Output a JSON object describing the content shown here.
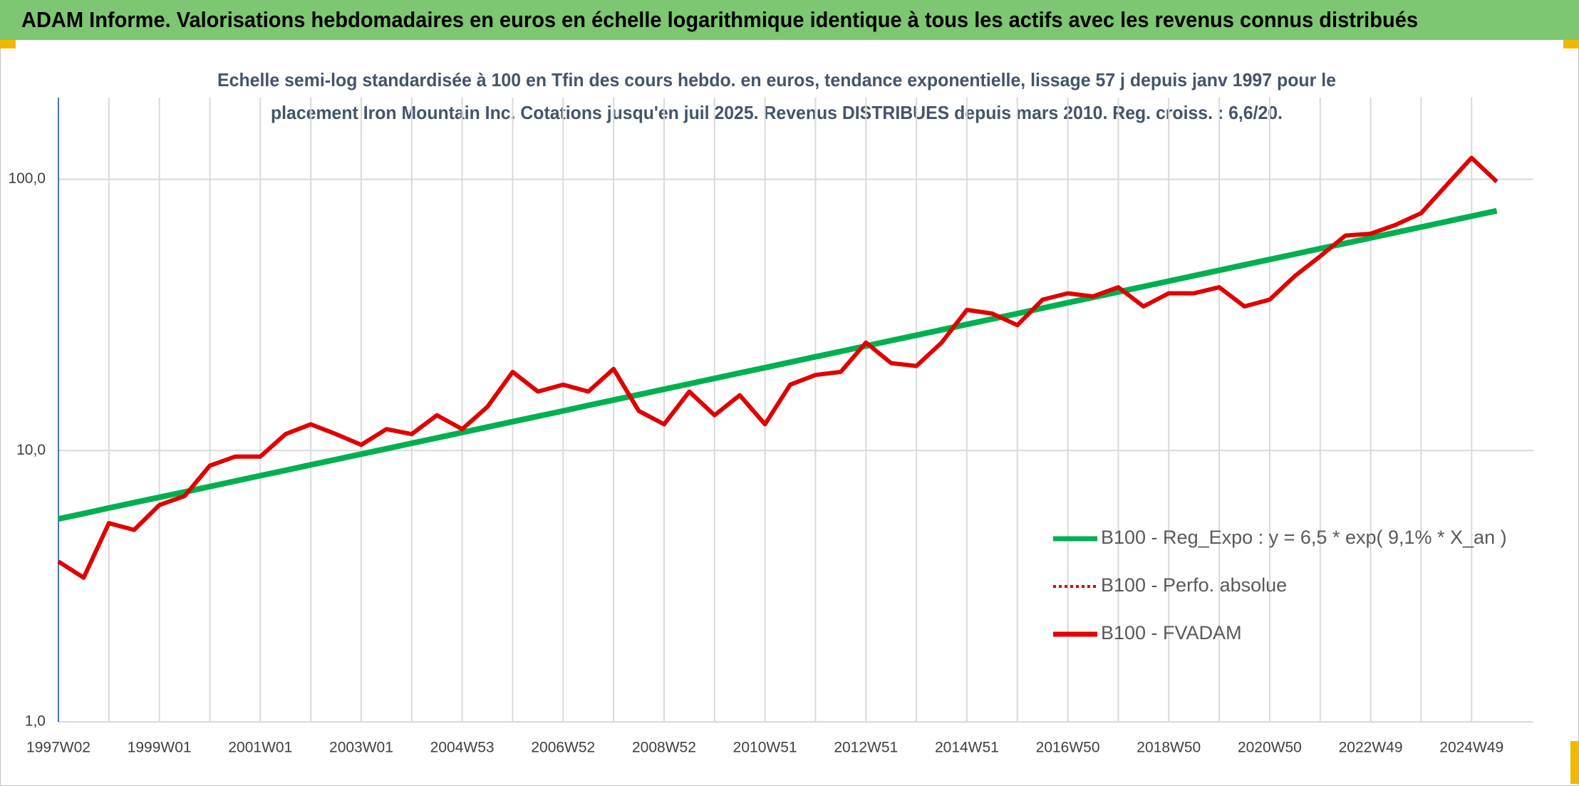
{
  "chart_data": {
    "type": "line",
    "title": "ADAM Informe. Valorisations hebdomadaires en euros en échelle logarithmique identique à tous les actifs avec les revenus connus distribués",
    "subtitle": [
      "Echelle semi-log standardisée à 100 en Tfin des cours hebdo. en euros, tendance exponentielle, lissage 57 j depuis janv 1997 pour le",
      "placement Iron Mountain Inc. Cotations jusqu'en juil 2025. Revenus DISTRIBUES depuis mars 2010. Reg. croiss. : 6,6/20."
    ],
    "log_scale": true,
    "grid": true,
    "categories": [
      "1997W02",
      null,
      null,
      null,
      "1999W01",
      null,
      null,
      null,
      "2001W01",
      null,
      null,
      null,
      "2003W01",
      null,
      null,
      null,
      "2004W53",
      null,
      null,
      null,
      "2006W52",
      null,
      null,
      null,
      "2008W52",
      null,
      null,
      null,
      "2010W51",
      null,
      null,
      null,
      "2012W51",
      null,
      null,
      null,
      "2014W51",
      null,
      null,
      null,
      "2016W50",
      null,
      null,
      null,
      "2018W50",
      null,
      null,
      null,
      "2020W50",
      null,
      null,
      null,
      "2022W49",
      null,
      null,
      null,
      "2024W49",
      null
    ],
    "ylim": [
      1,
      200
    ],
    "yticks": [
      {
        "value": 1,
        "label": "1,0"
      },
      {
        "value": 10,
        "label": "10,0"
      },
      {
        "value": 100,
        "label": "100,0"
      }
    ],
    "series": [
      {
        "name": "B100 - Reg_Expo : y = 6,5 * exp( 9,1% *  X_an )",
        "color": "#00b050",
        "dash": "solid",
        "values": [
          5.6,
          5.86,
          6.14,
          6.43,
          6.73,
          7.04,
          7.37,
          7.72,
          8.08,
          8.46,
          8.86,
          9.27,
          9.71,
          10.16,
          10.64,
          11.14,
          11.66,
          12.21,
          12.78,
          13.38,
          14.01,
          14.67,
          15.36,
          16.08,
          16.83,
          17.62,
          18.45,
          19.32,
          20.22,
          21.17,
          22.17,
          23.21,
          24.3,
          25.44,
          26.63,
          27.88,
          29.19,
          30.56,
          32.0,
          33.5,
          35.07,
          36.72,
          38.44,
          40.25,
          42.14,
          44.12,
          46.19,
          48.36,
          50.63,
          53.01,
          55.5,
          58.11,
          60.84,
          63.69,
          66.69,
          69.82,
          73.1,
          76.53
        ]
      },
      {
        "name": "B100 - Perfo. absolue",
        "color": "#e00000",
        "dash": "dotted",
        "values": [
          3.9,
          3.4,
          5.4,
          5.1,
          6.3,
          6.8,
          8.8,
          9.5,
          9.5,
          11.5,
          12.5,
          11.5,
          10.5,
          12.0,
          11.5,
          13.5,
          12.0,
          14.5,
          19.5,
          16.5,
          17.5,
          16.5,
          20.0,
          14.0,
          12.5,
          16.5,
          13.5,
          16.0,
          12.5,
          17.5,
          19.0,
          19.5,
          25.0,
          21.0,
          20.5,
          25.0,
          33.0,
          32.0,
          29.0,
          36.0,
          38.0,
          37.0,
          40.0,
          34.0,
          38.0,
          38.0,
          40.0,
          34.0,
          36.0,
          44.0,
          52.0,
          62.0,
          63.0,
          68.0,
          75.0,
          95.0,
          120.0,
          98.0
        ]
      },
      {
        "name": "B100 - FVADAM",
        "color": "#e00000",
        "dash": "solid",
        "values": [
          3.9,
          3.4,
          5.4,
          5.1,
          6.3,
          6.8,
          8.8,
          9.5,
          9.5,
          11.5,
          12.5,
          11.5,
          10.5,
          12.0,
          11.5,
          13.5,
          12.0,
          14.5,
          19.5,
          16.5,
          17.5,
          16.5,
          20.0,
          14.0,
          12.5,
          16.5,
          13.5,
          16.0,
          12.5,
          17.5,
          19.0,
          19.5,
          25.0,
          21.0,
          20.5,
          25.0,
          33.0,
          32.0,
          29.0,
          36.0,
          38.0,
          37.0,
          40.0,
          34.0,
          38.0,
          38.0,
          40.0,
          34.0,
          36.0,
          44.0,
          52.0,
          62.0,
          63.0,
          68.0,
          75.0,
          95.0,
          120.0,
          98.0
        ]
      }
    ]
  }
}
